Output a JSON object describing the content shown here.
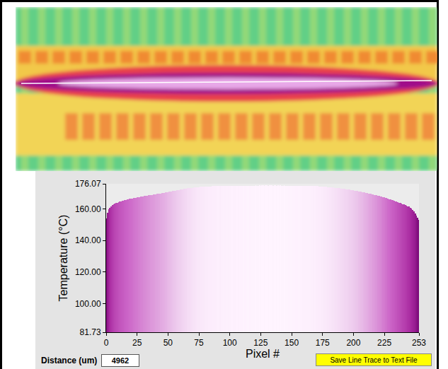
{
  "chart_data": {
    "type": "bar",
    "xlabel": "Pixel #",
    "ylabel": "Temperature (°C)",
    "x": [
      0,
      1,
      2,
      3,
      4,
      5,
      6,
      7,
      8,
      9,
      10,
      11,
      12,
      13,
      14,
      15,
      16,
      17,
      18,
      19,
      20,
      21,
      22,
      23,
      24,
      25,
      26,
      27,
      28,
      29,
      30,
      31,
      32,
      33,
      34,
      35,
      36,
      37,
      38,
      39,
      40,
      41,
      42,
      43,
      44,
      45,
      46,
      47,
      48,
      49,
      50,
      51,
      52,
      53,
      54,
      55,
      56,
      57,
      58,
      59,
      60,
      61,
      62,
      63,
      64,
      65,
      66,
      67,
      68,
      69,
      70,
      71,
      72,
      73,
      74,
      75,
      76,
      77,
      78,
      79,
      80,
      81,
      82,
      83,
      84,
      85,
      86,
      87,
      88,
      89,
      90,
      91,
      92,
      93,
      94,
      95,
      96,
      97,
      98,
      99,
      100,
      101,
      102,
      103,
      104,
      105,
      106,
      107,
      108,
      109,
      110,
      111,
      112,
      113,
      114,
      115,
      116,
      117,
      118,
      119,
      120,
      121,
      122,
      123,
      124,
      125,
      126,
      127,
      128,
      129,
      130,
      131,
      132,
      133,
      134,
      135,
      136,
      137,
      138,
      139,
      140,
      141,
      142,
      143,
      144,
      145,
      146,
      147,
      148,
      149,
      150,
      151,
      152,
      153,
      154,
      155,
      156,
      157,
      158,
      159,
      160,
      161,
      162,
      163,
      164,
      165,
      166,
      167,
      168,
      169,
      170,
      171,
      172,
      173,
      174,
      175,
      176,
      177,
      178,
      179,
      180,
      181,
      182,
      183,
      184,
      185,
      186,
      187,
      188,
      189,
      190,
      191,
      192,
      193,
      194,
      195,
      196,
      197,
      198,
      199,
      200,
      201,
      202,
      203,
      204,
      205,
      206,
      207,
      208,
      209,
      210,
      211,
      212,
      213,
      214,
      215,
      216,
      217,
      218,
      219,
      220,
      221,
      222,
      223,
      224,
      225,
      226,
      227,
      228,
      229,
      230,
      231,
      232,
      233,
      234,
      235,
      236,
      237,
      238,
      239,
      240,
      241,
      242,
      243,
      244,
      245,
      246,
      247,
      248,
      249,
      250,
      251,
      252,
      253
    ],
    "values": [
      154.2,
      157.5,
      159.8,
      161.0,
      161.9,
      162.5,
      163.0,
      163.4,
      163.8,
      164.1,
      164.4,
      164.7,
      165.0,
      165.2,
      165.4,
      165.7,
      165.9,
      166.1,
      166.3,
      166.5,
      166.6,
      166.8,
      167.0,
      167.1,
      167.3,
      167.4,
      167.6,
      167.7,
      167.9,
      168.0,
      168.2,
      168.3,
      168.4,
      168.6,
      168.7,
      168.8,
      169.0,
      169.1,
      169.2,
      169.3,
      169.5,
      169.6,
      169.7,
      169.8,
      170.0,
      170.1,
      170.2,
      170.3,
      170.5,
      170.6,
      170.8,
      171.0,
      171.1,
      171.3,
      171.4,
      171.6,
      171.7,
      171.9,
      172.0,
      172.2,
      172.3,
      172.5,
      172.6,
      172.8,
      172.9,
      173.0,
      173.2,
      173.3,
      173.4,
      173.5,
      173.6,
      173.7,
      173.8,
      173.9,
      174.0,
      174.0,
      174.1,
      174.1,
      174.2,
      174.2,
      174.3,
      174.3,
      174.3,
      174.4,
      174.4,
      174.4,
      174.5,
      174.5,
      174.5,
      174.5,
      174.6,
      174.6,
      174.5,
      174.6,
      174.6,
      174.7,
      174.6,
      174.7,
      174.7,
      174.6,
      174.7,
      174.7,
      174.8,
      174.7,
      174.7,
      174.8,
      174.8,
      174.7,
      174.8,
      174.8,
      174.8,
      174.9,
      174.8,
      174.8,
      174.9,
      174.9,
      174.8,
      174.9,
      174.9,
      174.9,
      174.9,
      175.0,
      174.9,
      174.9,
      175.0,
      174.9,
      175.0,
      175.0,
      174.9,
      175.0,
      175.0,
      174.9,
      175.0,
      175.0,
      175.0,
      174.9,
      175.0,
      175.0,
      174.9,
      175.0,
      174.9,
      175.0,
      174.9,
      174.9,
      175.0,
      174.9,
      174.9,
      174.9,
      174.8,
      174.9,
      174.9,
      174.8,
      174.9,
      174.8,
      174.8,
      174.8,
      174.9,
      174.8,
      174.8,
      174.7,
      174.8,
      174.7,
      174.7,
      174.7,
      174.6,
      174.7,
      174.6,
      174.6,
      174.5,
      174.6,
      174.5,
      174.5,
      174.4,
      174.4,
      174.3,
      174.3,
      174.2,
      174.2,
      174.1,
      174.0,
      174.0,
      173.9,
      173.8,
      173.7,
      173.7,
      173.6,
      173.5,
      173.4,
      173.3,
      173.2,
      173.1,
      173.0,
      172.9,
      172.8,
      172.7,
      172.6,
      172.4,
      172.3,
      172.2,
      172.0,
      171.9,
      171.8,
      171.6,
      171.5,
      171.3,
      171.2,
      171.0,
      170.9,
      170.7,
      170.5,
      170.4,
      170.2,
      170.0,
      169.8,
      169.7,
      169.5,
      169.3,
      169.1,
      168.9,
      168.7,
      168.5,
      168.3,
      168.1,
      167.8,
      167.6,
      167.4,
      167.1,
      166.9,
      166.6,
      166.4,
      166.1,
      165.8,
      165.6,
      165.3,
      165.0,
      164.7,
      164.4,
      164.1,
      163.8,
      163.5,
      163.2,
      162.9,
      162.6,
      162.3,
      161.9,
      161.5,
      161.0,
      160.4,
      159.6,
      158.6,
      157.3,
      155.8,
      154.5,
      153.2
    ],
    "xlim": [
      0,
      253
    ],
    "ylim": [
      81.73,
      176.07
    ],
    "xticks": [
      0,
      25,
      50,
      75,
      100,
      125,
      150,
      175,
      200,
      225,
      253
    ],
    "yticks": [
      176.07,
      {
        "value": 160,
        "label": "160.00"
      },
      {
        "value": 140,
        "label": "140.00"
      },
      {
        "value": 120,
        "label": "120.00"
      },
      {
        "value": 100,
        "label": "100.00"
      },
      81.73
    ],
    "grid": false
  },
  "controls": {
    "distance_label": "Distance (um)",
    "distance_value": 4962,
    "save_button": "Save Line Trace to Text File"
  }
}
